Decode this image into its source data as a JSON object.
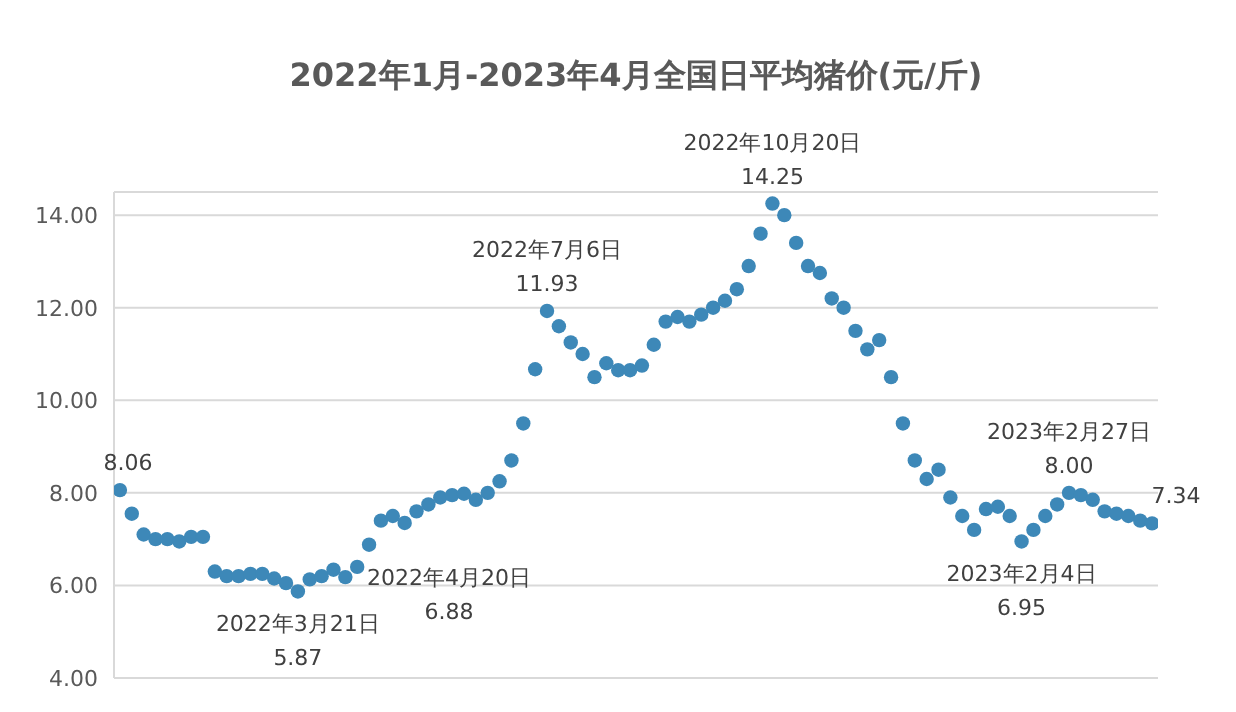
{
  "chart_data": {
    "type": "scatter",
    "title": "2022年1月-2023年4月全国日平均猪价(元/斤)",
    "categories": [
      null,
      null,
      null,
      null,
      null,
      null,
      null,
      null,
      null,
      null,
      null,
      null,
      null,
      null,
      null,
      null,
      null,
      null,
      null,
      null,
      null,
      null,
      null,
      null,
      null,
      null,
      null,
      null,
      null,
      null,
      null,
      null,
      null,
      null,
      null,
      null,
      null,
      null,
      null,
      null,
      null,
      null,
      null,
      null,
      null,
      null,
      null,
      null,
      null,
      null,
      null,
      null,
      null,
      null,
      null,
      null,
      null,
      null,
      null,
      null,
      null,
      null,
      null,
      null,
      null,
      null,
      null,
      null,
      null,
      null,
      null,
      null,
      null,
      null,
      null,
      null,
      null,
      null,
      null,
      null,
      null,
      null,
      null,
      null,
      null,
      null,
      null,
      null
    ],
    "values": [
      8.06,
      7.55,
      7.1,
      7.0,
      7.0,
      6.95,
      7.05,
      7.05,
      6.3,
      6.2,
      6.2,
      6.25,
      6.25,
      6.15,
      6.05,
      5.87,
      6.13,
      6.2,
      6.34,
      6.18,
      6.4,
      6.88,
      7.4,
      7.5,
      7.35,
      7.6,
      7.75,
      7.9,
      7.95,
      7.98,
      7.85,
      8.0,
      8.25,
      8.7,
      9.5,
      10.67,
      11.93,
      11.6,
      11.25,
      11.0,
      10.5,
      10.8,
      10.65,
      10.65,
      10.75,
      11.2,
      11.7,
      11.8,
      11.7,
      11.85,
      12.0,
      12.15,
      12.4,
      12.9,
      13.6,
      14.25,
      14.0,
      13.4,
      12.9,
      12.75,
      12.2,
      12.0,
      11.5,
      11.1,
      11.3,
      10.5,
      9.5,
      8.7,
      8.3,
      8.5,
      7.9,
      7.5,
      7.2,
      7.65,
      7.7,
      7.5,
      6.95,
      7.2,
      7.5,
      7.75,
      8.0,
      7.95,
      7.85,
      7.6,
      7.55,
      7.5,
      7.4,
      7.34
    ],
    "value_labels": [
      "8.06",
      null,
      null,
      null,
      null,
      null,
      null,
      null,
      null,
      null,
      null,
      null,
      null,
      null,
      null,
      "2022年3月21日\n5.87",
      null,
      null,
      null,
      null,
      null,
      "2022年4月20日\n6.88",
      null,
      null,
      null,
      null,
      null,
      null,
      null,
      null,
      null,
      null,
      null,
      null,
      null,
      null,
      "2022年7月6日\n11.93",
      null,
      null,
      null,
      null,
      null,
      null,
      null,
      null,
      null,
      null,
      null,
      null,
      null,
      null,
      null,
      null,
      null,
      null,
      "2022年10月20日\n14.25",
      null,
      null,
      null,
      null,
      null,
      null,
      null,
      null,
      null,
      null,
      null,
      null,
      null,
      null,
      null,
      null,
      null,
      null,
      null,
      null,
      "2023年2月4日\n6.95",
      null,
      null,
      null,
      "2023年2月27日\n8.00",
      null,
      null,
      null,
      null,
      null,
      null,
      "7.34"
    ],
    "color": "#3d88b8",
    "marker": "circle",
    "ylim": [
      4,
      14.5
    ],
    "yticks": [
      {
        "value": 4,
        "label": "4.00"
      },
      {
        "value": 6,
        "label": "6.00"
      },
      {
        "value": 8,
        "label": "8.00"
      },
      {
        "value": 10,
        "label": "10.00"
      },
      {
        "value": 12,
        "label": "12.00"
      },
      {
        "value": 14,
        "label": "14.00"
      }
    ],
    "grid": "y",
    "tick_labels": "y"
  }
}
